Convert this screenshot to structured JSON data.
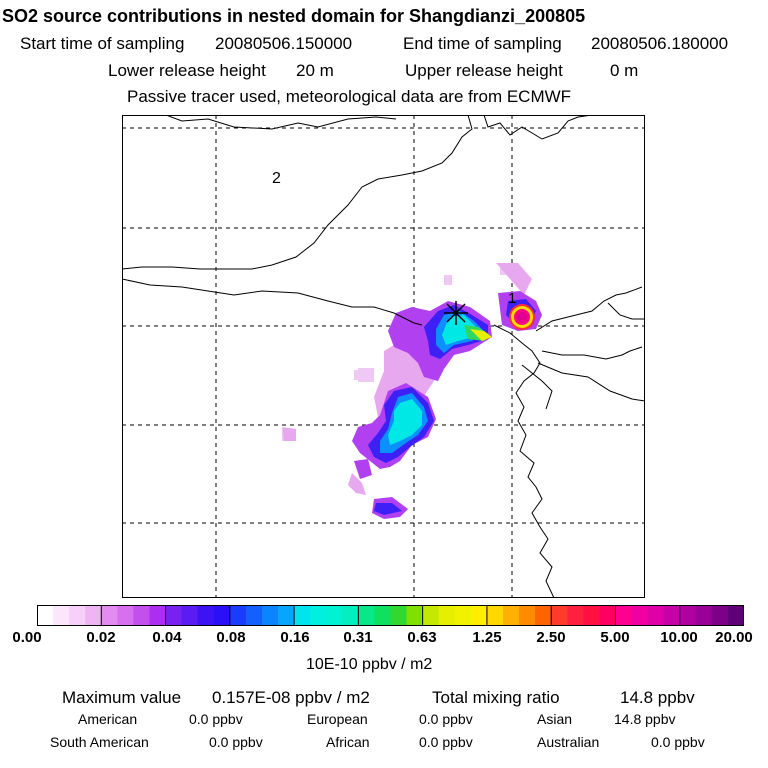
{
  "title": "SO2 source contributions in nested domain for Shangdianzi_200805",
  "header": {
    "start_label": "Start time of sampling",
    "start_value": "20080506.150000",
    "end_label": "End time of sampling",
    "end_value": "20080506.180000",
    "lower_label": "Lower release height",
    "lower_value": "20 m",
    "upper_label": "Upper release height",
    "upper_value": "0 m",
    "tracer_note": "Passive tracer used, meteorological data are from ECMWF"
  },
  "map": {
    "region_labels": [
      "2",
      "1"
    ],
    "receptor_marker": "asterisk-star",
    "plume_colors": {
      "faint": "#e8b8f0",
      "light": "#cc66ee",
      "purple": "#9900ee",
      "blue": "#3333ff",
      "midblue": "#0099ff",
      "cyan": "#00e8e8",
      "green": "#33cc66",
      "yellow": "#ffee00",
      "red": "#ff2244",
      "magenta": "#ff0099"
    }
  },
  "colorbar": {
    "ticks": [
      "0.00",
      "0.02",
      "0.04",
      "0.08",
      "0.16",
      "0.31",
      "0.63",
      "1.25",
      "2.50",
      "5.00",
      "10.00",
      "20.00"
    ],
    "colors": [
      "#ffffff",
      "#fbe6fb",
      "#f6d0f8",
      "#efb4f4",
      "#e28cf0",
      "#d670ee",
      "#c350ee",
      "#ad2ef0",
      "#7722f0",
      "#5a1cf2",
      "#3c14f4",
      "#2a10f6",
      "#1a3cff",
      "#1460ff",
      "#0a84ff",
      "#06a6ff",
      "#00e4ec",
      "#00f0e0",
      "#00f2d2",
      "#04eec0",
      "#08e888",
      "#10e060",
      "#30d830",
      "#80e000",
      "#c4e800",
      "#e4f000",
      "#f0f200",
      "#ffee00",
      "#ffd800",
      "#ffb000",
      "#ff8c00",
      "#ff6400",
      "#ff3c2c",
      "#ff2040",
      "#ff1040",
      "#ff0060",
      "#ff0090",
      "#f000a0",
      "#e000a8",
      "#c800a8",
      "#b000a0",
      "#980098",
      "#7c0088",
      "#600078"
    ],
    "unit": "10E-10 ppbv / m2"
  },
  "footer": {
    "max_label": "Maximum value",
    "max_value": "0.157E-08 ppbv / m2",
    "total_label": "Total mixing ratio",
    "total_value": "14.8 ppbv",
    "regions": [
      {
        "name": "American",
        "value": "0.0 ppbv"
      },
      {
        "name": "European",
        "value": "0.0 ppbv"
      },
      {
        "name": "Asian",
        "value": "14.8 ppbv"
      },
      {
        "name": "South American",
        "value": "0.0 ppbv"
      },
      {
        "name": "African",
        "value": "0.0 ppbv"
      },
      {
        "name": "Australian",
        "value": "0.0 ppbv"
      }
    ]
  }
}
